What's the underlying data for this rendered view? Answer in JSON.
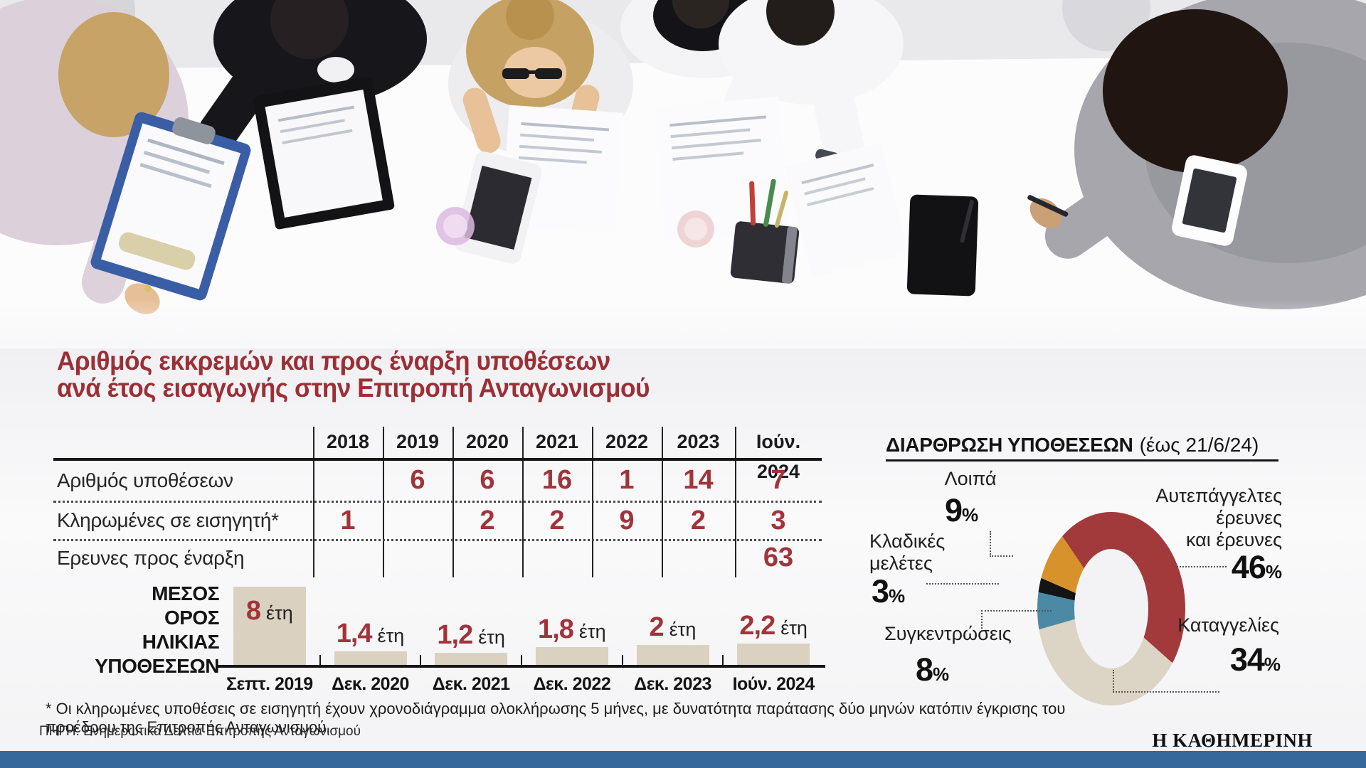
{
  "title": {
    "line1": "Αριθμός εκκρεμών και προς έναρξη υποθέσεων",
    "line2": "ανά έτος εισαγωγής στην Επιτροπή Ανταγωνισμού"
  },
  "footnote": "* Οι κληρωμένες υποθέσεις σε εισηγητή έχουν χρονοδιάγραμμα ολοκλήρωσης 5 μήνες, με δυνατότητα παράτασης δύο μηνών κατόπιν έγκρισης του προέδρου της Επιτροπής Ανταγωνισμού.",
  "source": "ΠΗΓΗ: Ενημερωτικά Δελτία Επιτροπής Ανταγωνισμού",
  "brand": "Η ΚΑΘΗΜΕΡΙΝΗ",
  "colors": {
    "accent_red": "#9C2F36",
    "value_red": "#A3333A",
    "bar_fill": "#DAD1C0",
    "rule_black": "#161617",
    "bottom_bar": "#36689B",
    "donut_hole": "#F3F3F5"
  },
  "chart_data": [
    {
      "type": "table",
      "title": "Αριθμός εκκρεμών και προς έναρξη υποθέσεων ανά έτος εισαγωγής στην Επιτροπή Ανταγωνισμού",
      "columns": [
        "2018",
        "2019",
        "2020",
        "2021",
        "2022",
        "2023",
        "Ιούν. 2024"
      ],
      "rows": [
        {
          "label": "Αριθμός υποθέσεων",
          "values": [
            "",
            "6",
            "6",
            "16",
            "1",
            "14",
            "7"
          ]
        },
        {
          "label": "Κληρωμένες σε εισηγητή*",
          "values": [
            "1",
            "",
            "2",
            "2",
            "9",
            "2",
            "3"
          ]
        },
        {
          "label": "Ερευνες προς έναρξη",
          "values": [
            "",
            "",
            "",
            "",
            "",
            "",
            "63"
          ]
        }
      ]
    },
    {
      "type": "bar",
      "title": "ΜΕΣΟΣ ΟΡΟΣ ΗΛΙΚΙΑΣ ΥΠΟΘΕΣΕΩΝ",
      "title_lines": [
        "ΜΕΣΟΣ",
        "ΟΡΟΣ",
        "ΗΛΙΚΙΑΣ",
        "ΥΠΟΘΕΣΕΩΝ"
      ],
      "categories": [
        "Σεπτ. 2019",
        "Δεκ. 2020",
        "Δεκ. 2021",
        "Δεκ. 2022",
        "Δεκ. 2023",
        "Ιούν. 2024"
      ],
      "values": [
        8,
        1.4,
        1.2,
        1.8,
        2,
        2.2
      ],
      "value_labels": [
        "8",
        "1,4",
        "1,2",
        "1,8",
        "2",
        "2,2"
      ],
      "unit": "έτη",
      "xlabel": "",
      "ylabel": "",
      "ylim": [
        0,
        8
      ],
      "grid": false
    },
    {
      "type": "pie",
      "subtype": "donut",
      "title": "ΔΙΑΡΘΡΩΣΗ ΥΠΟΘΕΣΕΩΝ",
      "title_note": "(έως 21/6/24)",
      "labels": [
        "Αυτεπάγγελτες\nέρευνες\nκαι έρευνες",
        "Καταγγελίες",
        "Συγκεντρώσεις",
        "Κλαδικές\nμελέτες",
        "Λοιπά"
      ],
      "values": [
        46,
        34,
        8,
        3,
        9
      ],
      "pct_labels": [
        "46",
        "34",
        "8",
        "3",
        "9"
      ],
      "colors": [
        "#A23A3C",
        "#DCD4C5",
        "#4B89A5",
        "#141414",
        "#D8922C"
      ],
      "legend_position": "around"
    }
  ]
}
